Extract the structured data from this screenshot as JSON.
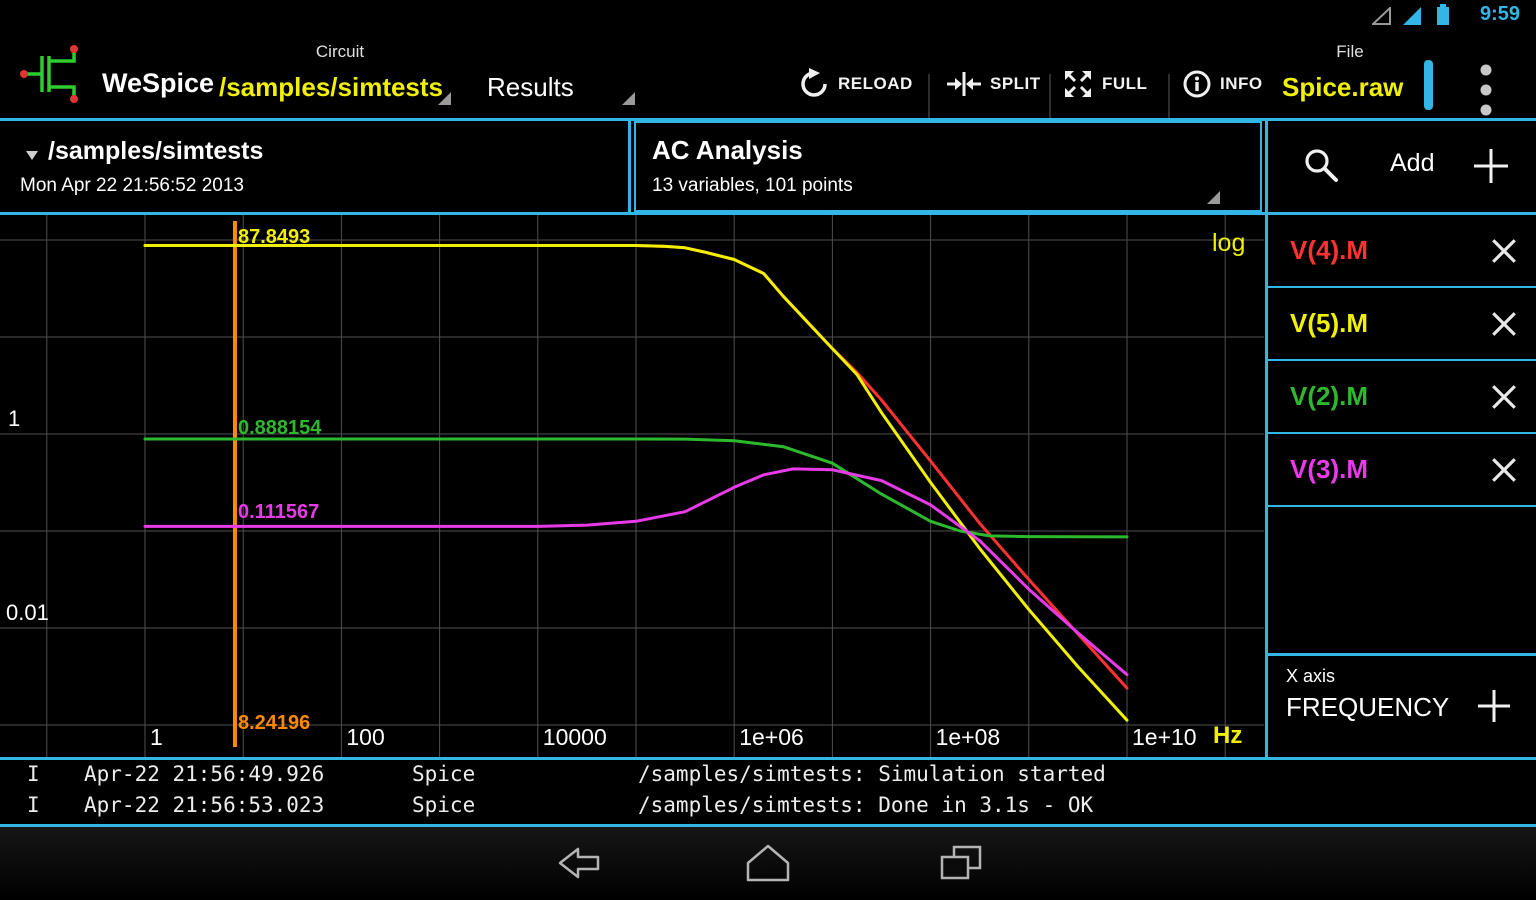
{
  "status_bar": {
    "time": "9:59"
  },
  "toolbar": {
    "app_name": "WeSpice",
    "circuit": {
      "label": "Circuit",
      "value": "/samples/simtests"
    },
    "results_tab": "Results",
    "buttons": {
      "reload": "RELOAD",
      "split": "SPLIT",
      "full": "FULL",
      "info": "INFO"
    },
    "file": {
      "label": "File",
      "value": "Spice.raw"
    }
  },
  "dataset_header": {
    "title": "/samples/simtests",
    "timestamp": "Mon Apr 22 21:56:52 2013"
  },
  "analysis_header": {
    "title": "AC Analysis",
    "subtitle": "13 variables, 101 points"
  },
  "add_panel": {
    "label": "Add"
  },
  "sidebar": {
    "variables": [
      {
        "name": "V(4).M",
        "color": "#ff3232"
      },
      {
        "name": "V(5).M",
        "color": "#f0f000"
      },
      {
        "name": "V(2).M",
        "color": "#2db92d"
      },
      {
        "name": "V(3).M",
        "color": "#e93ae9"
      }
    ],
    "x_axis": {
      "label": "X axis",
      "value": "FREQUENCY"
    }
  },
  "chart_data": {
    "type": "line",
    "x_scale": "log",
    "y_scale": "log",
    "scale_badge": "log",
    "x_unit": "Hz",
    "x_ticks": [
      "1",
      "100",
      "10000",
      "1e+06",
      "1e+08",
      "1e+10"
    ],
    "x_tick_decades": [
      0,
      2,
      4,
      6,
      8,
      10
    ],
    "y_ticks": [
      "1",
      "0.01"
    ],
    "y_tick_decades": [
      0,
      -2
    ],
    "x_decade_range": [
      -1,
      11
    ],
    "y_grid_decades": [
      2,
      1,
      0,
      -1,
      -2,
      -3
    ],
    "grid_color": "#4f4f4f",
    "cursor": {
      "frequency_hz": 8.24196,
      "freq_label": "8.24196",
      "color": "#ff8a00",
      "readouts": [
        {
          "series": "V(5).M",
          "label": "87.8493",
          "color": "#f0f000"
        },
        {
          "series": "V(2).M",
          "label": "0.888154",
          "color": "#2db92d"
        },
        {
          "series": "V(3).M",
          "label": "0.111567",
          "color": "#e93ae9"
        }
      ]
    },
    "series": [
      {
        "name": "V(4).M",
        "color": "#ff3232",
        "points": [
          [
            1,
            87.8493
          ],
          [
            100000,
            87.8
          ],
          [
            200000,
            86
          ],
          [
            316000,
            83
          ],
          [
            501000,
            75
          ],
          [
            1000000,
            63
          ],
          [
            2000000,
            45
          ],
          [
            3160000,
            26.3
          ],
          [
            10000000,
            7.6
          ],
          [
            17800000,
            4.3
          ],
          [
            31600000,
            2.24
          ],
          [
            100000000,
            0.525
          ],
          [
            316000000,
            0.12
          ],
          [
            1000000000,
            0.0316
          ],
          [
            3160000000,
            0.0087
          ],
          [
            10000000000,
            0.0024
          ]
        ]
      },
      {
        "name": "V(5).M",
        "color": "#f0f000",
        "points": [
          [
            1,
            87.8493
          ],
          [
            100000,
            87.8
          ],
          [
            200000,
            86
          ],
          [
            316000,
            83
          ],
          [
            501000,
            75
          ],
          [
            1000000,
            63
          ],
          [
            2000000,
            45
          ],
          [
            3160000,
            26.3
          ],
          [
            10000000,
            7.6
          ],
          [
            17800000,
            4.1
          ],
          [
            31600000,
            1.66
          ],
          [
            100000000,
            0.316
          ],
          [
            316000000,
            0.066
          ],
          [
            1000000000,
            0.0155
          ],
          [
            3160000000,
            0.004
          ],
          [
            10000000000,
            0.00112
          ]
        ]
      },
      {
        "name": "V(2).M",
        "color": "#2db92d",
        "points": [
          [
            1,
            0.888154
          ],
          [
            100000,
            0.888
          ],
          [
            316000,
            0.885
          ],
          [
            1000000,
            0.851
          ],
          [
            3160000,
            0.74
          ],
          [
            10000000,
            0.5
          ],
          [
            31600000,
            0.24
          ],
          [
            100000000,
            0.126
          ],
          [
            200000000,
            0.1
          ],
          [
            398000000,
            0.089
          ],
          [
            1000000000,
            0.0875
          ],
          [
            10000000000,
            0.087
          ]
        ]
      },
      {
        "name": "V(3).M",
        "color": "#e93ae9",
        "points": [
          [
            1,
            0.111567
          ],
          [
            10000,
            0.1116
          ],
          [
            31600,
            0.115
          ],
          [
            100000,
            0.126
          ],
          [
            316000,
            0.158
          ],
          [
            1000000,
            0.282
          ],
          [
            2000000,
            0.38
          ],
          [
            3980000,
            0.437
          ],
          [
            10000000,
            0.427
          ],
          [
            31600000,
            0.331
          ],
          [
            100000000,
            0.186
          ],
          [
            316000000,
            0.0794
          ],
          [
            1000000000,
            0.0251
          ],
          [
            3160000000,
            0.0089
          ],
          [
            10000000000,
            0.0033
          ]
        ]
      }
    ]
  },
  "log_panel": {
    "rows": [
      {
        "level": "I",
        "time": "Apr-22 21:56:49.926",
        "source": "Spice",
        "message": "/samples/simtests: Simulation started"
      },
      {
        "level": "I",
        "time": "Apr-22 21:56:53.023",
        "source": "Spice",
        "message": "/samples/simtests: Done in 3.1s - OK"
      }
    ]
  },
  "icons": {
    "toolbar": [
      "reload-icon",
      "split-icon",
      "full-icon",
      "info-icon",
      "overflow-menu-icon"
    ],
    "panels": [
      "search-icon",
      "plus-icon",
      "close-icon"
    ],
    "navbar": [
      "back-icon",
      "home-icon",
      "recents-icon"
    ],
    "status": [
      "signal-icon",
      "battery-icon"
    ]
  }
}
